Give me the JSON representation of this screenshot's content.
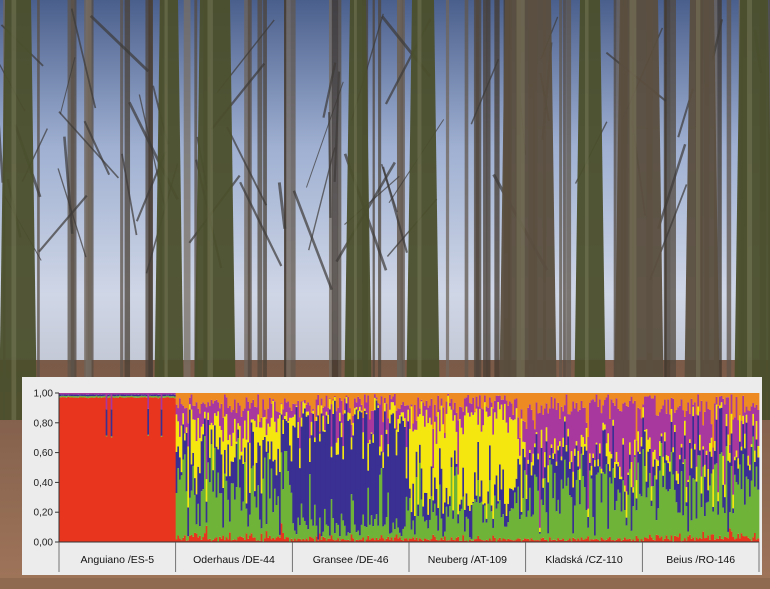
{
  "colors": {
    "red": "#e8361e",
    "green": "#6fb438",
    "blue": "#3a2f93",
    "yellow": "#f4e60f",
    "magenta": "#a8389e",
    "orange": "#ee8a22"
  },
  "chart_data": {
    "type": "bar",
    "subtype": "stacked-structure-plot",
    "title": "",
    "xlabel": "",
    "ylabel": "",
    "ylim": [
      0,
      1
    ],
    "yticks": [
      "0,00",
      "0,20",
      "0,40",
      "0,60",
      "0,80",
      "1,00"
    ],
    "categories": [
      "Anguiano /ES-5",
      "Oderhaus /DE-44",
      "Gransee /DE-46",
      "Neuberg /AT-109",
      "Kladská /CZ-110",
      "Beius /RO-146"
    ],
    "series_order": [
      "red",
      "green",
      "blue",
      "yellow",
      "magenta",
      "orange"
    ],
    "mean_membership": [
      {
        "red": 0.97,
        "green": 0.01,
        "blue": 0.01,
        "yellow": 0.0,
        "magenta": 0.01,
        "orange": 0.0
      },
      {
        "red": 0.02,
        "green": 0.38,
        "blue": 0.22,
        "yellow": 0.18,
        "magenta": 0.12,
        "orange": 0.08
      },
      {
        "red": 0.01,
        "green": 0.1,
        "blue": 0.7,
        "yellow": 0.05,
        "magenta": 0.08,
        "orange": 0.06
      },
      {
        "red": 0.01,
        "green": 0.2,
        "blue": 0.14,
        "yellow": 0.48,
        "magenta": 0.09,
        "orange": 0.08
      },
      {
        "red": 0.01,
        "green": 0.36,
        "blue": 0.22,
        "yellow": 0.06,
        "magenta": 0.27,
        "orange": 0.08
      },
      {
        "red": 0.02,
        "green": 0.38,
        "blue": 0.18,
        "yellow": 0.06,
        "magenta": 0.28,
        "orange": 0.08
      }
    ]
  }
}
